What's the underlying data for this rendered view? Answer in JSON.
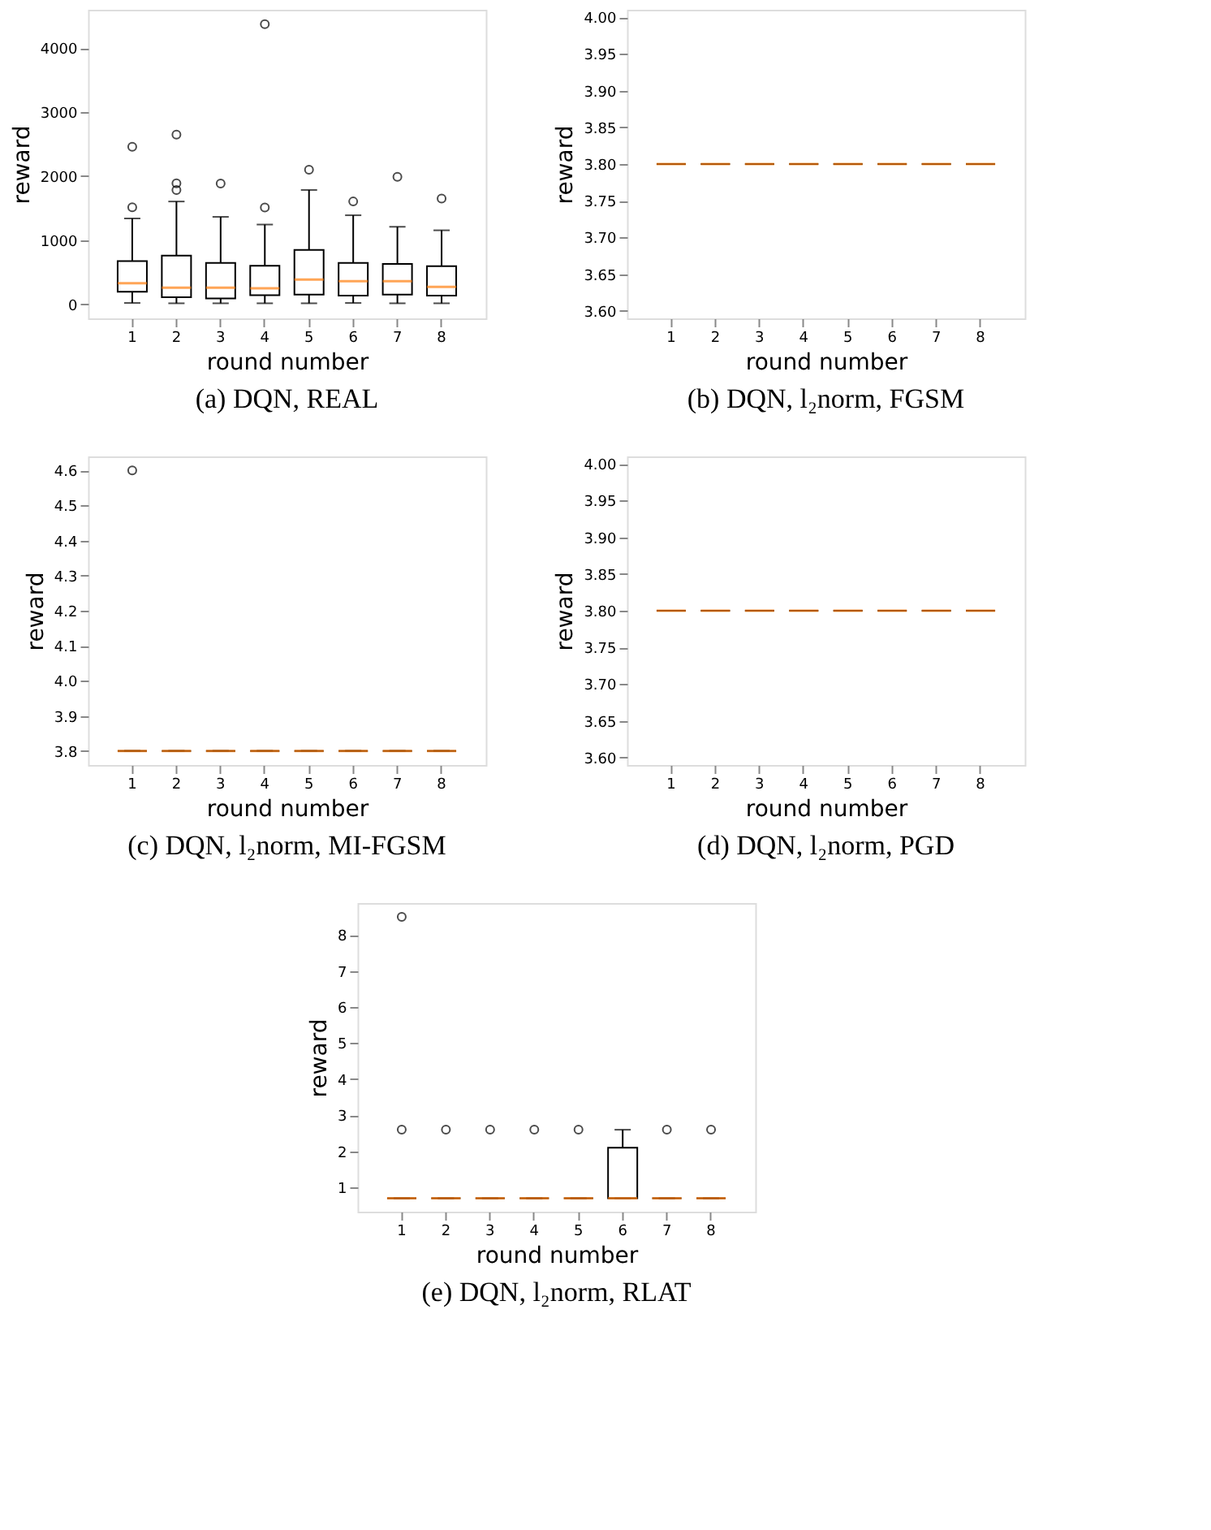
{
  "chart_data": [
    {
      "type": "box",
      "title": "(a) DQN, REAL",
      "xlabel": "round number",
      "ylabel": "reward",
      "categories": [
        "1",
        "2",
        "3",
        "4",
        "5",
        "6",
        "7",
        "8"
      ],
      "ylim": [
        -220,
        4600
      ],
      "yticks": [
        0,
        1000,
        2000,
        3000,
        4000
      ],
      "grid": false,
      "boxes": [
        {
          "low": 20,
          "q1": 195,
          "median": 330,
          "q3": 675,
          "high": 1340,
          "outliers": [
            1515,
            2460
          ]
        },
        {
          "low": 15,
          "q1": 110,
          "median": 260,
          "q3": 760,
          "high": 1605,
          "outliers": [
            1785,
            1890,
            2650
          ]
        },
        {
          "low": 15,
          "q1": 90,
          "median": 260,
          "q3": 645,
          "high": 1365,
          "outliers": [
            1885
          ]
        },
        {
          "low": 15,
          "q1": 140,
          "median": 250,
          "q3": 600,
          "high": 1245,
          "outliers": [
            1510,
            4375
          ]
        },
        {
          "low": 15,
          "q1": 150,
          "median": 385,
          "q3": 850,
          "high": 1785,
          "outliers": [
            2100
          ]
        },
        {
          "low": 20,
          "q1": 135,
          "median": 360,
          "q3": 645,
          "high": 1390,
          "outliers": [
            1605
          ]
        },
        {
          "low": 15,
          "q1": 150,
          "median": 360,
          "q3": 630,
          "high": 1210,
          "outliers": [
            1990
          ]
        },
        {
          "low": 15,
          "q1": 135,
          "median": 270,
          "q3": 595,
          "high": 1155,
          "outliers": [
            1650
          ]
        }
      ]
    },
    {
      "type": "box",
      "title": "(b) DQN, l₂norm, FGSM",
      "xlabel": "round number",
      "ylabel": "reward",
      "categories": [
        "1",
        "2",
        "3",
        "4",
        "5",
        "6",
        "7",
        "8"
      ],
      "ylim": [
        3.59,
        4.01
      ],
      "yticks": [
        {
          "value": 3.6,
          "label": "3.60"
        },
        3.65,
        {
          "value": 3.7,
          "label": "3.70"
        },
        3.75,
        {
          "value": 3.8,
          "label": "3.80"
        },
        3.85,
        {
          "value": 3.9,
          "label": "3.90"
        },
        3.95,
        {
          "value": 4.0,
          "label": "4.00"
        }
      ],
      "grid": false,
      "boxes": [
        {
          "low": 3.8,
          "q1": 3.8,
          "median": 3.8,
          "q3": 3.8,
          "high": 3.8
        },
        {
          "low": 3.8,
          "q1": 3.8,
          "median": 3.8,
          "q3": 3.8,
          "high": 3.8
        },
        {
          "low": 3.8,
          "q1": 3.8,
          "median": 3.8,
          "q3": 3.8,
          "high": 3.8
        },
        {
          "low": 3.8,
          "q1": 3.8,
          "median": 3.8,
          "q3": 3.8,
          "high": 3.8
        },
        {
          "low": 3.8,
          "q1": 3.8,
          "median": 3.8,
          "q3": 3.8,
          "high": 3.8
        },
        {
          "low": 3.8,
          "q1": 3.8,
          "median": 3.8,
          "q3": 3.8,
          "high": 3.8
        },
        {
          "low": 3.8,
          "q1": 3.8,
          "median": 3.8,
          "q3": 3.8,
          "high": 3.8
        },
        {
          "low": 3.8,
          "q1": 3.8,
          "median": 3.8,
          "q3": 3.8,
          "high": 3.8
        }
      ]
    },
    {
      "type": "box",
      "title": "(c) DQN, l₂norm, MI-FGSM",
      "xlabel": "round number",
      "ylabel": "reward",
      "categories": [
        "1",
        "2",
        "3",
        "4",
        "5",
        "6",
        "7",
        "8"
      ],
      "ylim": [
        3.76,
        4.64
      ],
      "yticks": [
        3.8,
        3.9,
        {
          "value": 4.0,
          "label": "4.0"
        },
        4.1,
        4.2,
        4.3,
        4.4,
        4.5,
        4.6
      ],
      "grid": false,
      "boxes": [
        {
          "low": 3.8,
          "q1": 3.8,
          "median": 3.8,
          "q3": 3.8,
          "high": 3.8,
          "outliers": [
            4.6
          ]
        },
        {
          "low": 3.8,
          "q1": 3.8,
          "median": 3.8,
          "q3": 3.8,
          "high": 3.8
        },
        {
          "low": 3.8,
          "q1": 3.8,
          "median": 3.8,
          "q3": 3.8,
          "high": 3.8
        },
        {
          "low": 3.8,
          "q1": 3.8,
          "median": 3.8,
          "q3": 3.8,
          "high": 3.8
        },
        {
          "low": 3.8,
          "q1": 3.8,
          "median": 3.8,
          "q3": 3.8,
          "high": 3.8
        },
        {
          "low": 3.8,
          "q1": 3.8,
          "median": 3.8,
          "q3": 3.8,
          "high": 3.8
        },
        {
          "low": 3.8,
          "q1": 3.8,
          "median": 3.8,
          "q3": 3.8,
          "high": 3.8
        },
        {
          "low": 3.8,
          "q1": 3.8,
          "median": 3.8,
          "q3": 3.8,
          "high": 3.8
        }
      ]
    },
    {
      "type": "box",
      "title": "(d) DQN, l₂norm, PGD",
      "xlabel": "round number",
      "ylabel": "reward",
      "categories": [
        "1",
        "2",
        "3",
        "4",
        "5",
        "6",
        "7",
        "8"
      ],
      "ylim": [
        3.59,
        4.01
      ],
      "yticks": [
        {
          "value": 3.6,
          "label": "3.60"
        },
        3.65,
        {
          "value": 3.7,
          "label": "3.70"
        },
        3.75,
        {
          "value": 3.8,
          "label": "3.80"
        },
        3.85,
        {
          "value": 3.9,
          "label": "3.90"
        },
        3.95,
        {
          "value": 4.0,
          "label": "4.00"
        }
      ],
      "grid": false,
      "boxes": [
        {
          "low": 3.8,
          "q1": 3.8,
          "median": 3.8,
          "q3": 3.8,
          "high": 3.8
        },
        {
          "low": 3.8,
          "q1": 3.8,
          "median": 3.8,
          "q3": 3.8,
          "high": 3.8
        },
        {
          "low": 3.8,
          "q1": 3.8,
          "median": 3.8,
          "q3": 3.8,
          "high": 3.8
        },
        {
          "low": 3.8,
          "q1": 3.8,
          "median": 3.8,
          "q3": 3.8,
          "high": 3.8
        },
        {
          "low": 3.8,
          "q1": 3.8,
          "median": 3.8,
          "q3": 3.8,
          "high": 3.8
        },
        {
          "low": 3.8,
          "q1": 3.8,
          "median": 3.8,
          "q3": 3.8,
          "high": 3.8
        },
        {
          "low": 3.8,
          "q1": 3.8,
          "median": 3.8,
          "q3": 3.8,
          "high": 3.8
        },
        {
          "low": 3.8,
          "q1": 3.8,
          "median": 3.8,
          "q3": 3.8,
          "high": 3.8
        }
      ]
    },
    {
      "type": "box",
      "title": "(e) DQN, l₂norm, RLAT",
      "xlabel": "round number",
      "ylabel": "reward",
      "categories": [
        "1",
        "2",
        "3",
        "4",
        "5",
        "6",
        "7",
        "8"
      ],
      "ylim": [
        0.33,
        8.88
      ],
      "yticks": [
        1,
        2,
        3,
        4,
        5,
        6,
        7,
        8
      ],
      "grid": false,
      "boxes": [
        {
          "low": 0.7,
          "q1": 0.7,
          "median": 0.7,
          "q3": 0.7,
          "high": 0.7,
          "outliers": [
            2.6,
            8.5
          ]
        },
        {
          "low": 0.7,
          "q1": 0.7,
          "median": 0.7,
          "q3": 0.7,
          "high": 0.7,
          "outliers": [
            2.6
          ]
        },
        {
          "low": 0.7,
          "q1": 0.7,
          "median": 0.7,
          "q3": 0.7,
          "high": 0.7,
          "outliers": [
            2.6
          ]
        },
        {
          "low": 0.7,
          "q1": 0.7,
          "median": 0.7,
          "q3": 0.7,
          "high": 0.7,
          "outliers": [
            2.6
          ]
        },
        {
          "low": 0.7,
          "q1": 0.7,
          "median": 0.7,
          "q3": 0.7,
          "high": 0.7,
          "outliers": [
            2.6
          ]
        },
        {
          "low": 0.7,
          "q1": 0.7,
          "median": 0.7,
          "q3": 2.1,
          "high": 2.6
        },
        {
          "low": 0.7,
          "q1": 0.7,
          "median": 0.7,
          "q3": 0.7,
          "high": 0.7,
          "outliers": [
            2.6
          ]
        },
        {
          "low": 0.7,
          "q1": 0.7,
          "median": 0.7,
          "q3": 0.7,
          "high": 0.7,
          "outliers": [
            2.6
          ]
        }
      ]
    }
  ]
}
